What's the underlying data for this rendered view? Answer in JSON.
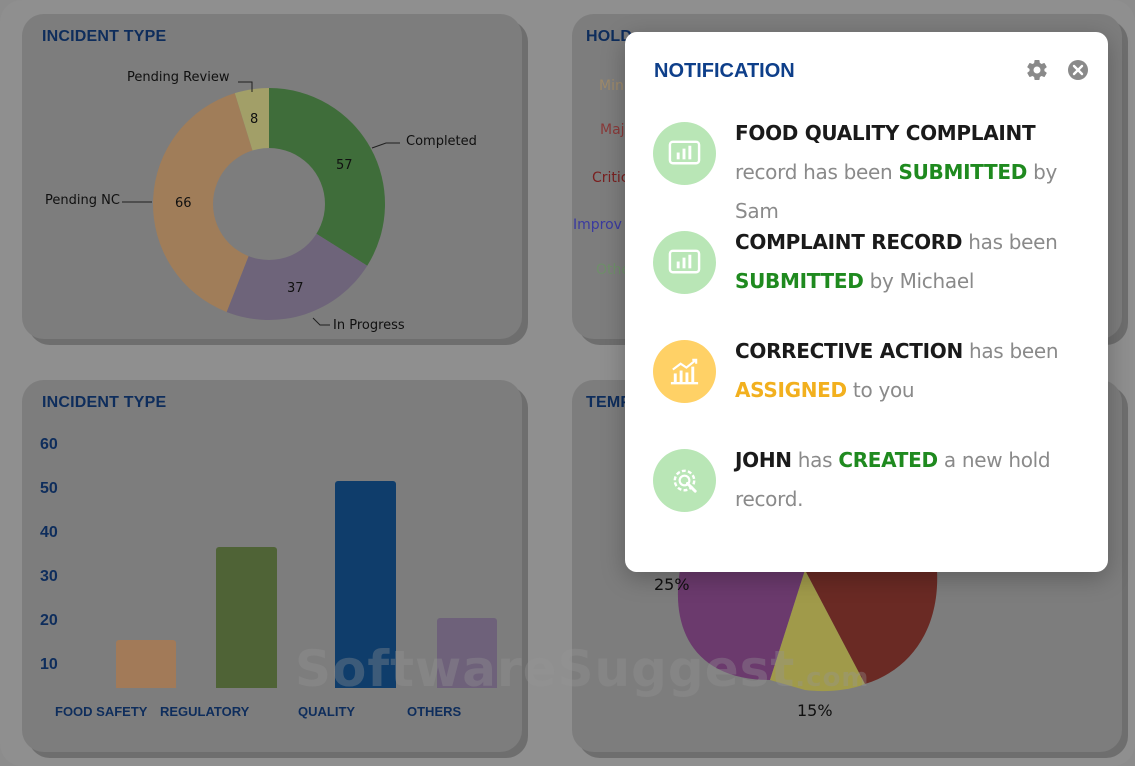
{
  "colors": {
    "navy": "#0e2d5c",
    "modal_title": "#0e3f8a",
    "green_status": "#1f8a1f",
    "amber_status": "#f2b01e",
    "icon_green_bg": "#b9e6b6",
    "icon_amber_bg": "#ffd166"
  },
  "donut_card": {
    "title": "INCIDENT TYPE",
    "chart_data": {
      "type": "pie",
      "labels": [
        "Completed",
        "In Progress",
        "Pending NC",
        "Pending Review"
      ],
      "values": [
        57,
        37,
        66,
        8
      ],
      "colors": [
        "#3f6d3a",
        "#6e647a",
        "#a07d59",
        "#a29f68"
      ]
    }
  },
  "hold_card": {
    "title": "HOLD",
    "legend": [
      {
        "text": "Min",
        "color": "#9e8a6a"
      },
      {
        "text": "Maj",
        "color": "#8a3a3a"
      },
      {
        "text": "Critic",
        "color": "#7a2020"
      },
      {
        "text": "Improv",
        "color": "#3a3aa0"
      },
      {
        "text": "Othe",
        "color": "#6f8f6a"
      }
    ]
  },
  "bar_card": {
    "title": "INCIDENT TYPE",
    "chart_data": {
      "type": "bar",
      "categories": [
        "FOOD SAFETY",
        "REGULATORY",
        "QUALITY",
        "OTHERS"
      ],
      "values": [
        16,
        37,
        52,
        21
      ],
      "colors": [
        "#a27a58",
        "#4f6336",
        "#0f3d6b",
        "#6e617a"
      ],
      "yticks": [
        60,
        50,
        40,
        30,
        20,
        10
      ],
      "ylim": [
        5,
        60
      ]
    }
  },
  "temp_card": {
    "title": "TEMP",
    "chart_data": {
      "type": "pie",
      "labels": [
        "25%",
        "15%"
      ],
      "values": [
        25,
        15
      ],
      "colors": [
        "#6b3a6d",
        "#a09a4a",
        "#6a2a24"
      ]
    }
  },
  "watermark": {
    "main": "SoftwareSuggest",
    "suffix": ".com"
  },
  "notification": {
    "title": "NOTIFICATION",
    "items": [
      {
        "icon": "chart-board-icon",
        "subject": "FOOD QUALITY COMPLAINT",
        "pre": "record has been",
        "status": "SUBMITTED",
        "post": "by Sam"
      },
      {
        "icon": "chart-board-icon",
        "subject": "COMPLAINT RECORD",
        "pre": "has been",
        "status": "SUBMITTED",
        "post": "by Michael"
      },
      {
        "icon": "growth-chart-icon",
        "subject": "CORRECTIVE ACTION",
        "pre": "has been",
        "status": "ASSIGNED",
        "post": "to you"
      },
      {
        "icon": "gear-wrench-icon",
        "subject": "JOHN",
        "pre": "has",
        "status": "CREATED",
        "post": "a new hold record."
      }
    ]
  }
}
